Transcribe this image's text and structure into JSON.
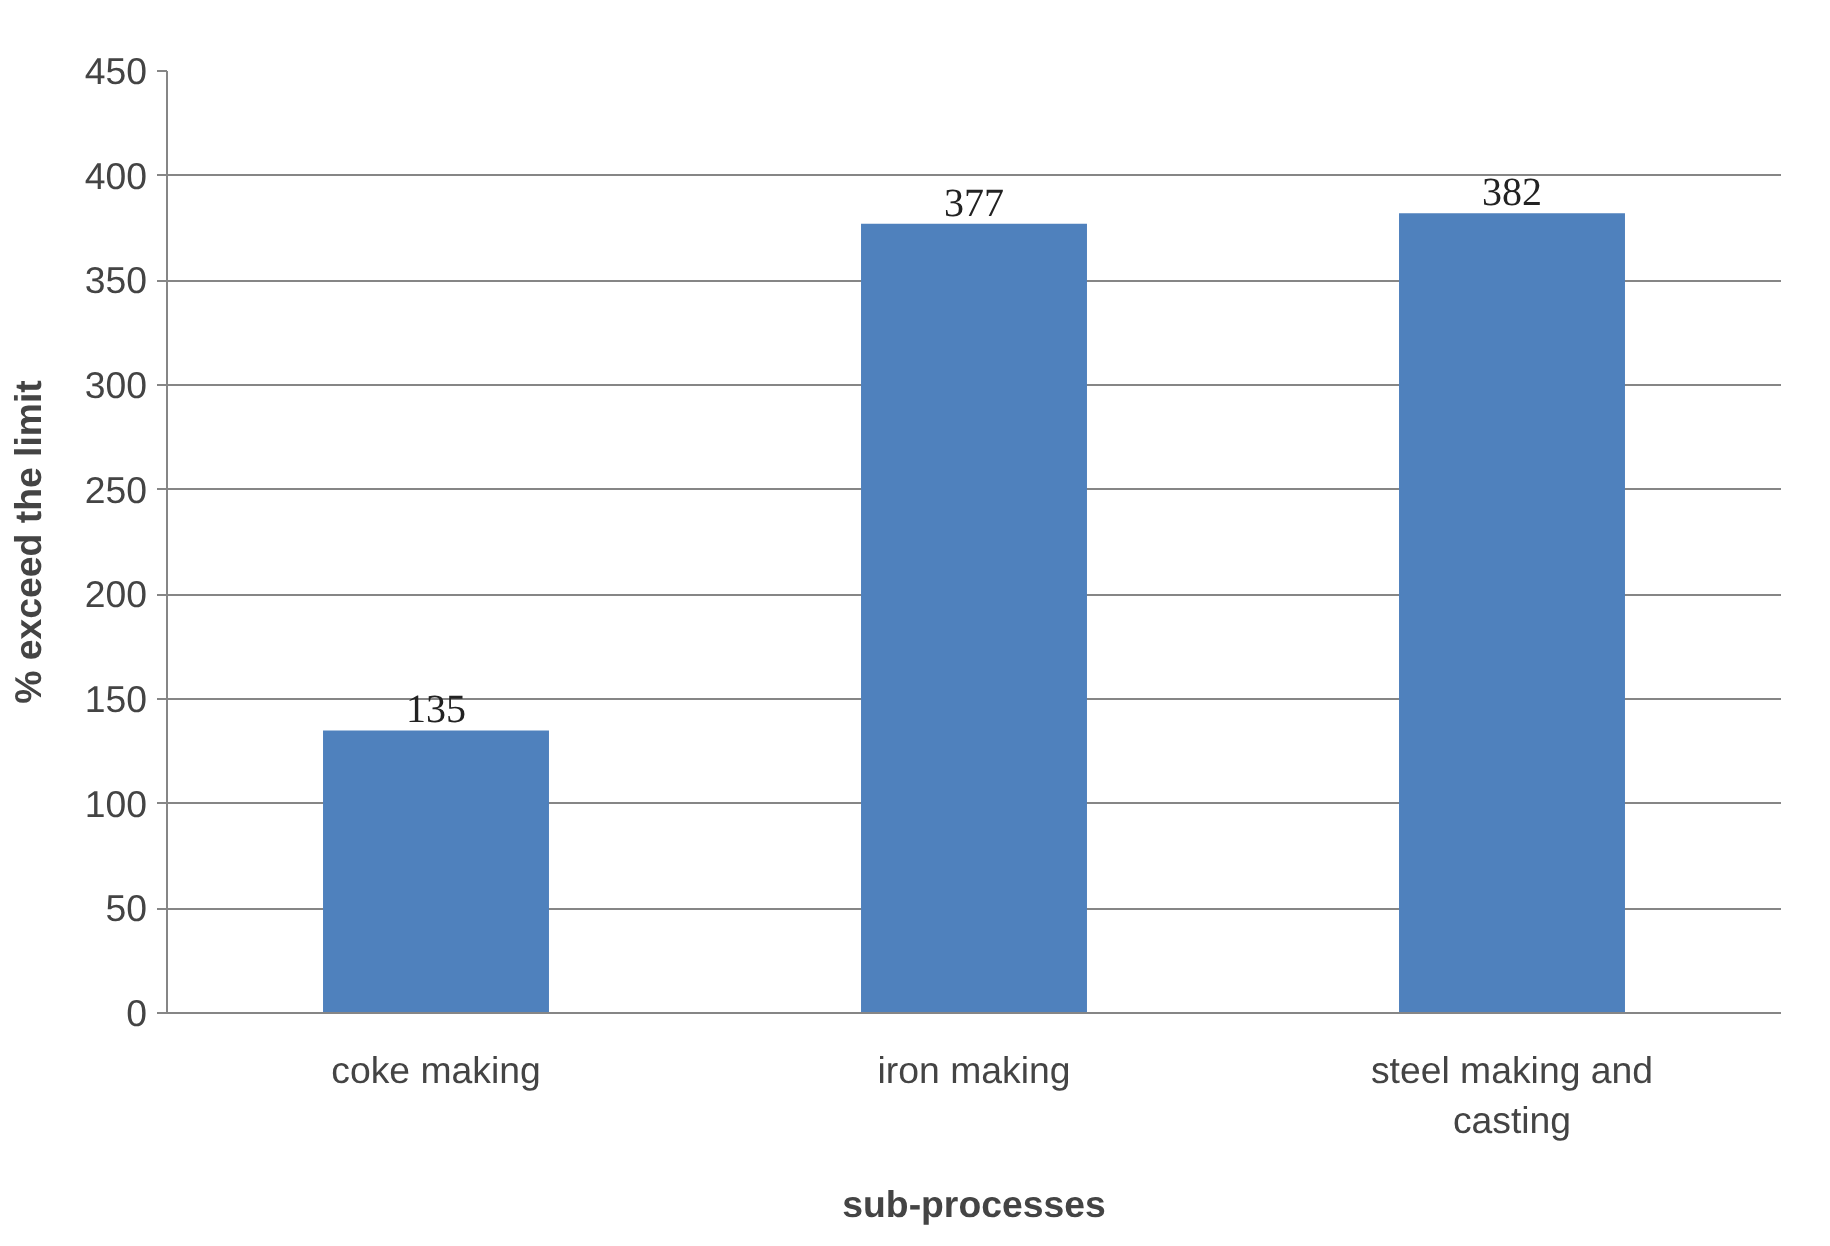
{
  "chart_data": {
    "type": "bar",
    "xlabel": "sub-processes",
    "ylabel": "% exceed the limit",
    "categories": [
      "coke making",
      "iron making",
      "steel making and casting"
    ],
    "values": [
      135,
      377,
      382
    ],
    "color": "#4f81bd",
    "ylim": [
      0,
      450
    ],
    "yticks": [
      0,
      50,
      100,
      150,
      200,
      250,
      300,
      350,
      400,
      450
    ],
    "grid": "y",
    "data_labels": true
  }
}
